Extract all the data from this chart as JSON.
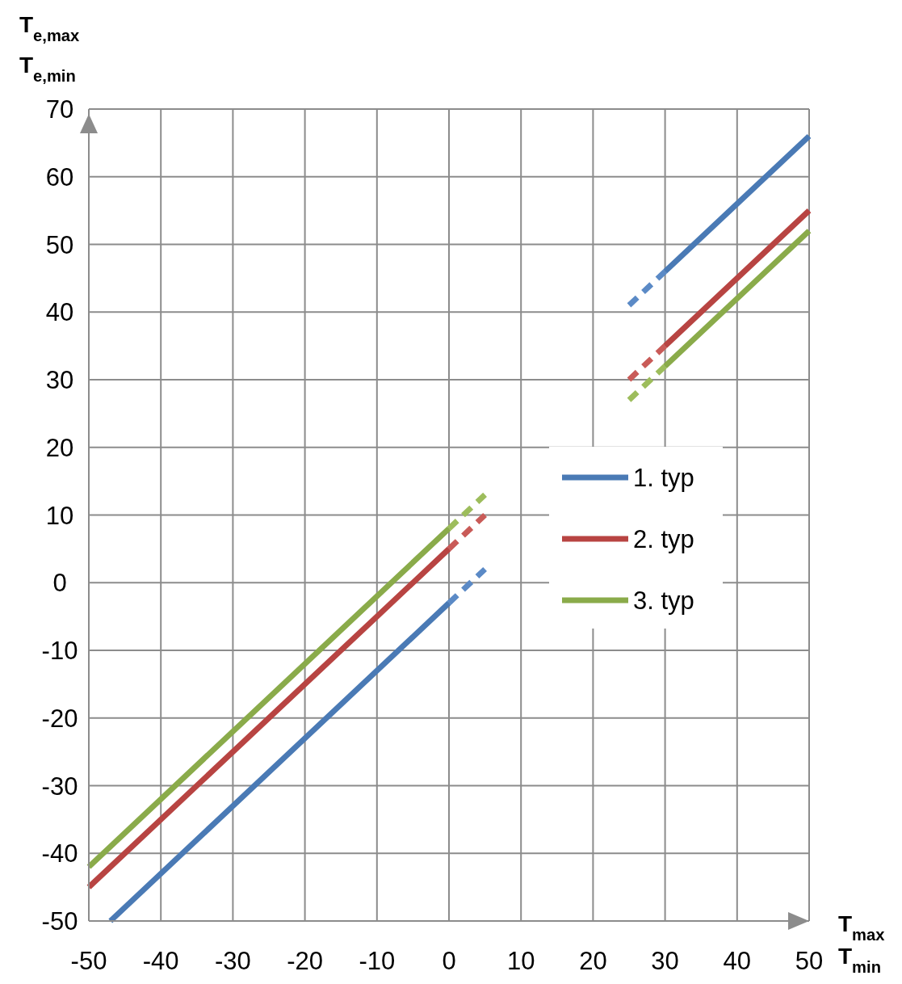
{
  "chart_data": {
    "type": "line",
    "xlabel": "T$_{max}$\nT$_{min}$",
    "ylabel": "T$_{e,max}$\nT$_{e,min}$",
    "xlim": [
      -50,
      50
    ],
    "xticks": [
      -50,
      -40,
      -30,
      -20,
      -10,
      0,
      10,
      20,
      30,
      40,
      50
    ],
    "ylim": [
      -50,
      70
    ],
    "yticks": [
      -50,
      -40,
      -30,
      -20,
      -10,
      0,
      10,
      20,
      30,
      40,
      50,
      60,
      70
    ],
    "grid": true,
    "legend": "right",
    "marker": "none",
    "series": [
      {
        "name": "1. typ",
        "color": "#4a7ab5",
        "x": [
          -47,
          0,
          15,
          30,
          50
        ],
        "values": [
          -50,
          -3,
          null,
          46,
          66
        ]
      },
      {
        "name": "2. typ",
        "color": "#b84442",
        "x": [
          -50,
          0,
          15,
          30,
          50
        ],
        "values": [
          -45,
          5,
          null,
          35,
          55
        ]
      },
      {
        "name": "3. typ",
        "color": "#8aab4a",
        "x": [
          -50,
          0,
          15,
          30,
          50
        ],
        "values": [
          -42,
          8,
          null,
          32,
          52
        ]
      },
      {
        "color": "#5b8ac6",
        "line_style": "dashed",
        "x": [
          0,
          5,
          15,
          25,
          30
        ],
        "values": [
          -3,
          2,
          null,
          41,
          46
        ]
      },
      {
        "color": "#c95b58",
        "line_style": "dashed",
        "x": [
          0,
          5,
          15,
          25,
          30
        ],
        "values": [
          5,
          10,
          null,
          30,
          35
        ]
      },
      {
        "color": "#9dbd5c",
        "line_style": "dashed",
        "x": [
          0,
          5,
          15,
          25,
          30
        ],
        "values": [
          8,
          13,
          null,
          27,
          32
        ]
      }
    ]
  }
}
